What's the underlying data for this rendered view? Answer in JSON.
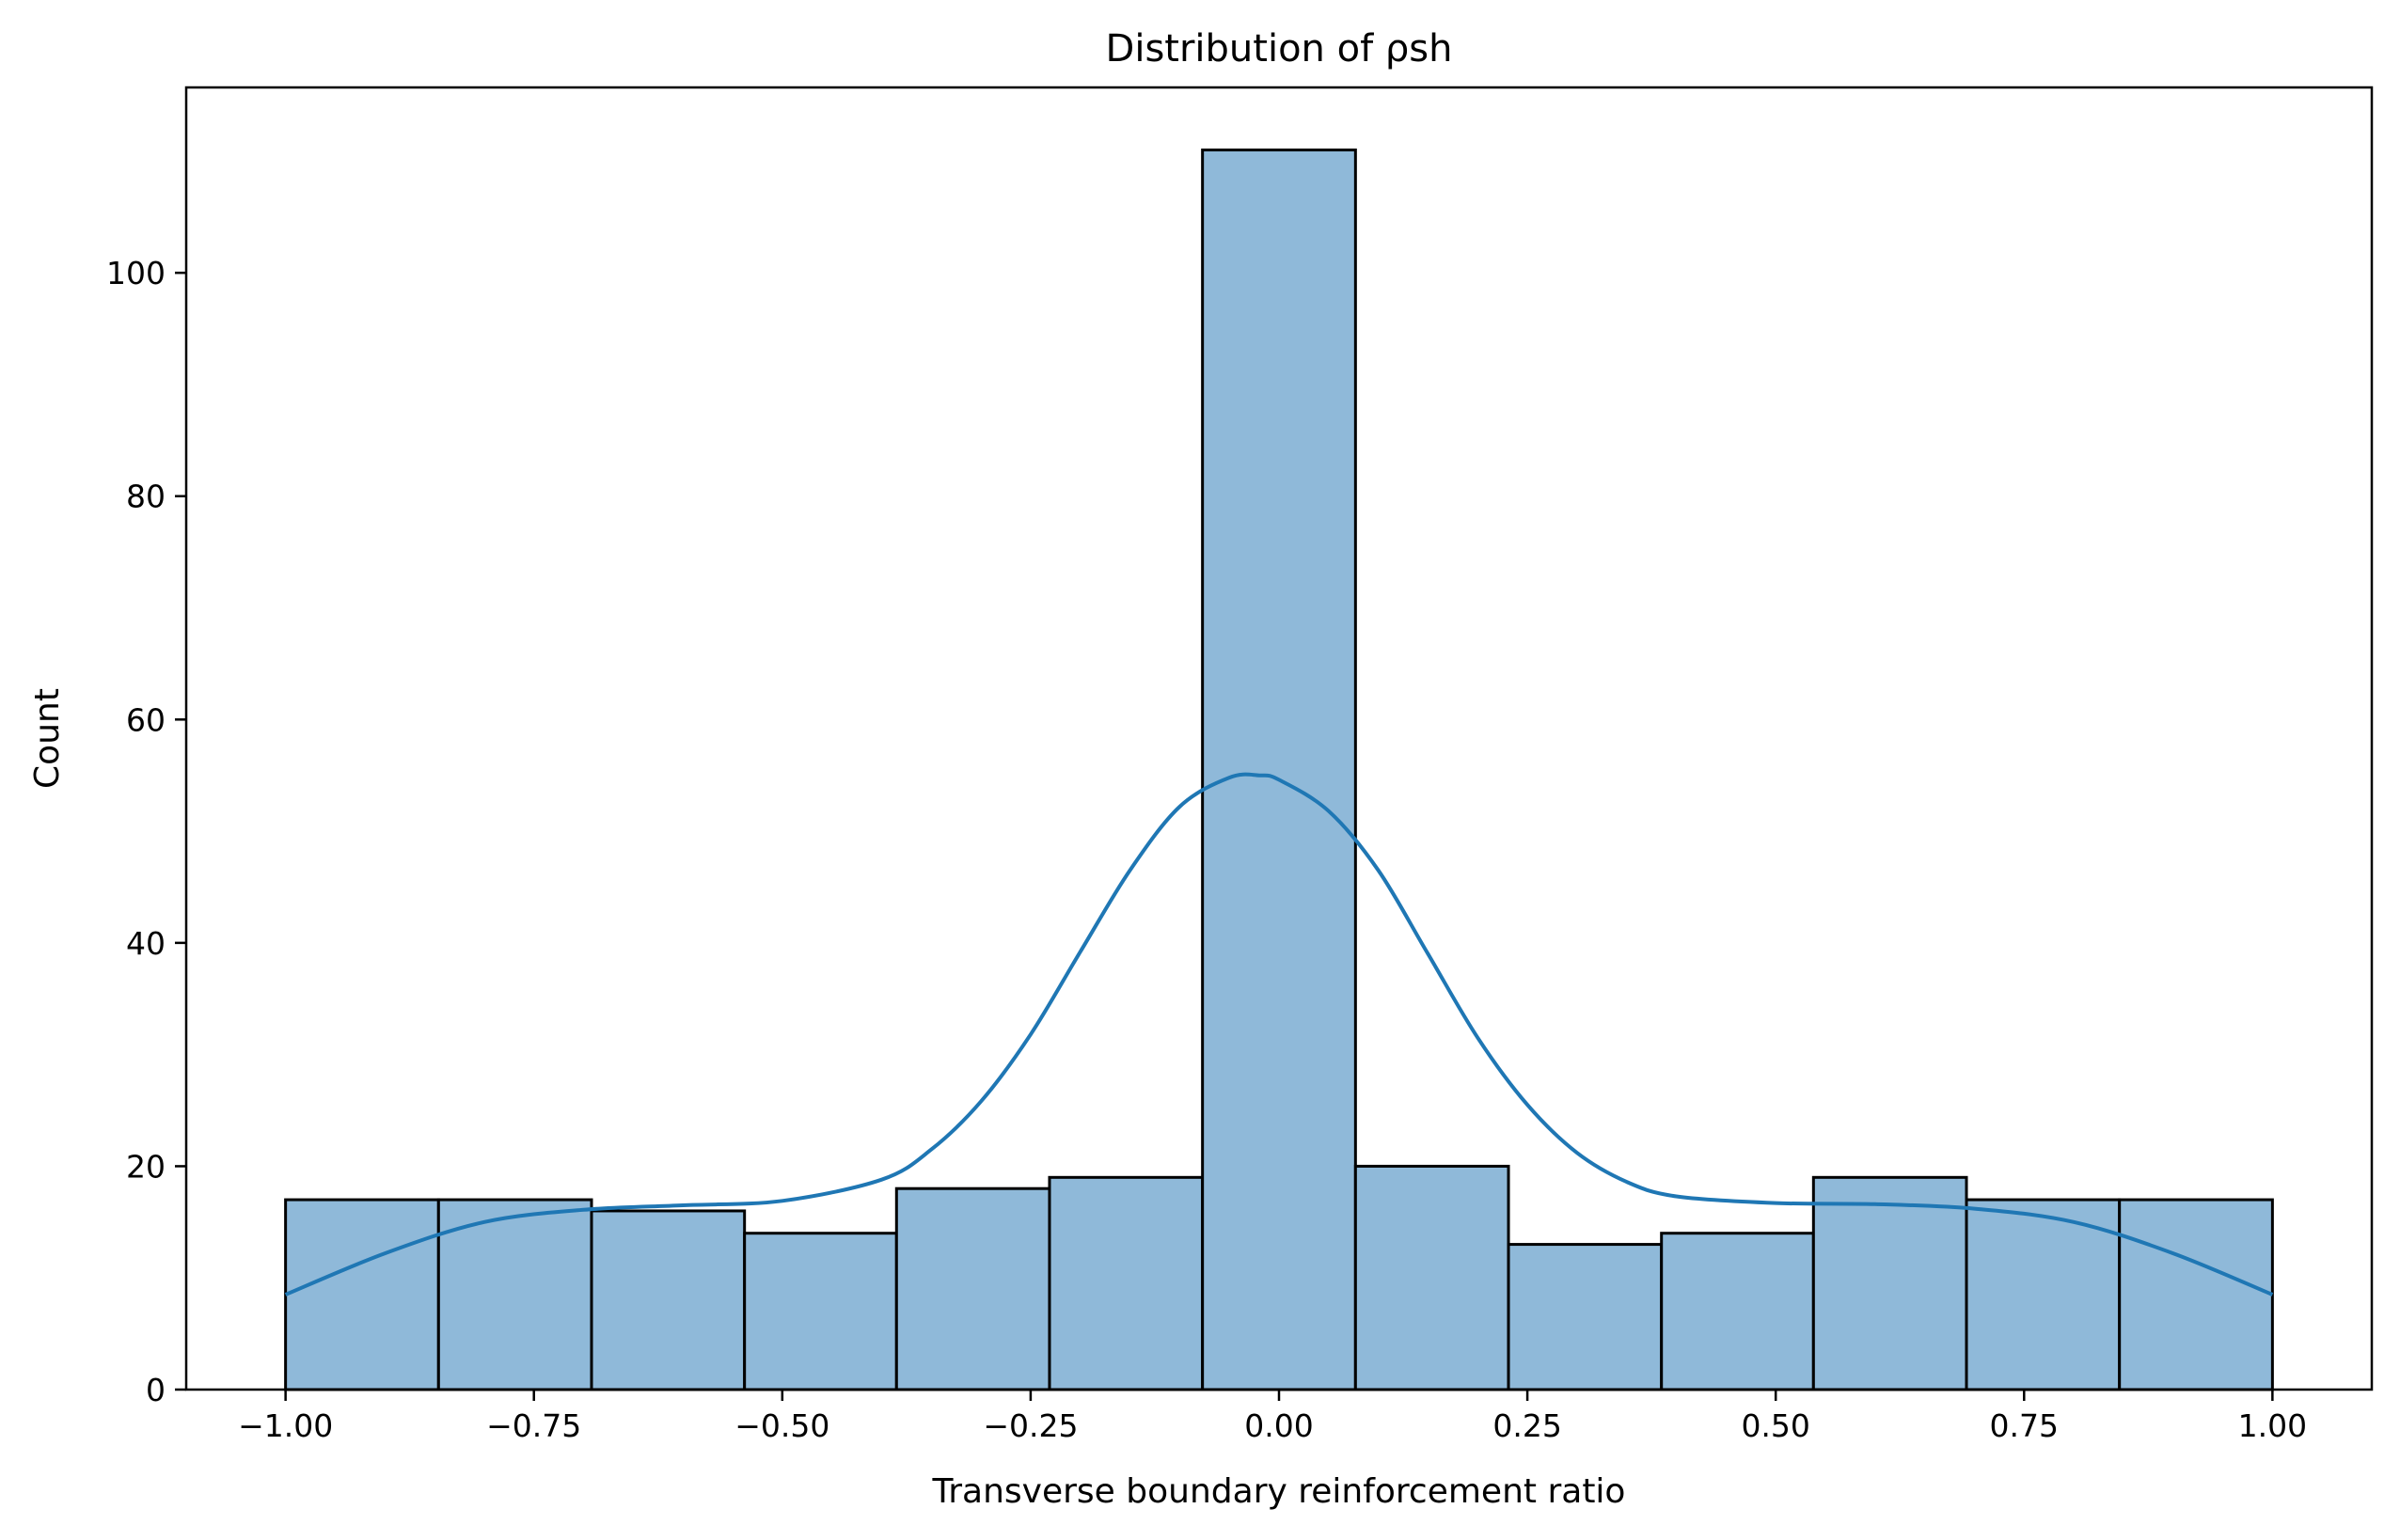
{
  "chart_data": {
    "type": "bar",
    "title": "Distribution of ρsh",
    "xlabel": "Transverse boundary reinforcement ratio",
    "ylabel": "Count",
    "xlim": [
      -1.1,
      1.1
    ],
    "ylim": [
      0,
      116.6
    ],
    "xticks": [
      -1.0,
      -0.75,
      -0.5,
      -0.25,
      0.0,
      0.25,
      0.5,
      0.75,
      1.0
    ],
    "xtick_labels": [
      "−1.00",
      "−0.75",
      "−0.50",
      "−0.25",
      "0.00",
      "0.25",
      "0.50",
      "0.75",
      "1.00"
    ],
    "yticks": [
      0,
      20,
      40,
      60,
      80,
      100
    ],
    "ytick_labels": [
      "0",
      "20",
      "40",
      "60",
      "80",
      "100"
    ],
    "bins": {
      "edges": [
        -1.0,
        -0.846,
        -0.692,
        -0.538,
        -0.385,
        -0.231,
        -0.077,
        0.077,
        0.231,
        0.385,
        0.538,
        0.692,
        0.846,
        1.0
      ],
      "counts": [
        17,
        17,
        16,
        14,
        18,
        19,
        111,
        20,
        13,
        14,
        19,
        17,
        17
      ]
    },
    "kde": {
      "x": [
        -1.0,
        -0.9,
        -0.8,
        -0.7,
        -0.6,
        -0.5,
        -0.4,
        -0.35,
        -0.3,
        -0.25,
        -0.2,
        -0.15,
        -0.1,
        -0.05,
        -0.02,
        0.0,
        0.05,
        0.1,
        0.15,
        0.2,
        0.25,
        0.3,
        0.35,
        0.4,
        0.5,
        0.6,
        0.7,
        0.8,
        0.9,
        1.0
      ],
      "y": [
        8.5,
        12.2,
        15.0,
        16.1,
        16.5,
        16.9,
        18.8,
        21.5,
        25.8,
        31.8,
        39.2,
        46.5,
        52.2,
        54.8,
        55.0,
        54.6,
        51.8,
        46.5,
        39.0,
        31.5,
        25.5,
        21.2,
        18.6,
        17.3,
        16.7,
        16.6,
        16.2,
        15.0,
        12.2,
        8.5
      ]
    },
    "grid": false,
    "legend": "none",
    "colors": {
      "bar_fill": "#8fb9d9",
      "bar_edge": "#000000",
      "kde_line": "#1f77b4"
    }
  }
}
